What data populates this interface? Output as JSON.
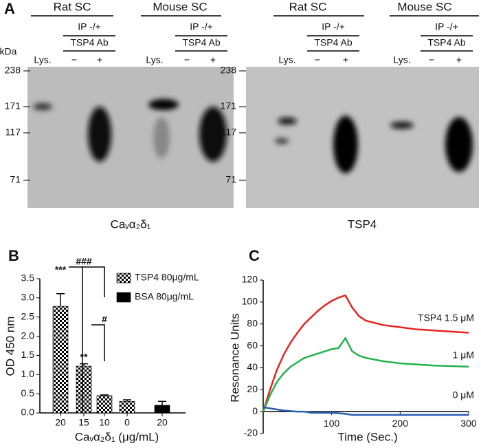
{
  "panel_a": {
    "label": "A",
    "unit": "kDa",
    "blots": [
      {
        "caption": "Caᵥα₂δ₁",
        "markers": [
          "238",
          "171",
          "117",
          "71"
        ],
        "groups": [
          {
            "name": "Rat SC",
            "ip": "IP -/+",
            "ab": "TSP4 Ab",
            "lanes": [
              "Lys.",
              "−",
              "+"
            ]
          },
          {
            "name": "Mouse SC",
            "ip": "IP -/+",
            "ab": "TSP4 Ab",
            "lanes": [
              "Lys.",
              "−",
              "+"
            ]
          }
        ]
      },
      {
        "caption": "TSP4",
        "markers": [
          "238",
          "171",
          "117",
          "71"
        ],
        "groups": [
          {
            "name": "Rat SC",
            "ip": "IP -/+",
            "ab": "TSP4 Ab",
            "lanes": [
              "Lys.",
              "−",
              "+"
            ]
          },
          {
            "name": "Mouse SC",
            "ip": "IP -/+",
            "ab": "TSP4 Ab",
            "lanes": [
              "Lys.",
              "−",
              "+"
            ]
          }
        ]
      }
    ]
  },
  "chart_data": [
    {
      "type": "bar",
      "panel": "B",
      "ylabel": "OD 450 nm",
      "xlabel": "Caᵥα₂δ₁ (μg/mL)",
      "categories": [
        "20",
        "15",
        "10",
        "0",
        "20"
      ],
      "series": [
        {
          "name": "TSP4 80μg/mL",
          "color": "checker",
          "values": [
            2.78,
            1.22,
            0.45,
            0.3,
            null
          ],
          "errors": [
            0.33,
            0.06,
            0.02,
            0.04,
            null
          ]
        },
        {
          "name": "BSA 80μg/mL",
          "color": "#000000",
          "values": [
            null,
            null,
            null,
            null,
            0.2
          ],
          "errors": [
            null,
            null,
            null,
            null,
            0.1
          ]
        }
      ],
      "annotations": [
        "***",
        "**",
        "###",
        "#"
      ],
      "ylim": [
        0,
        3.5
      ],
      "yticks": [
        {
          "value": 0,
          "label": "0.0"
        },
        {
          "value": 0.5,
          "label": "0.5"
        },
        {
          "value": 1,
          "label": "1.0"
        },
        {
          "value": 1.5,
          "label": "1.5"
        },
        {
          "value": 2,
          "label": "2.0"
        },
        {
          "value": 2.5,
          "label": "2.5"
        },
        {
          "value": 3,
          "label": "3.0"
        },
        {
          "value": 3.5,
          "label": "3.5"
        }
      ]
    },
    {
      "type": "line",
      "panel": "C",
      "ylabel": "Resonance Units",
      "xlabel": "Time (Sec.)",
      "x": [
        0,
        10,
        20,
        30,
        40,
        50,
        60,
        70,
        80,
        90,
        100,
        110,
        120,
        130,
        140,
        150,
        175,
        200,
        225,
        250,
        275,
        300
      ],
      "series": [
        {
          "name": "TSP4 1.5 μM",
          "color": "#e8231f",
          "values": [
            0,
            20,
            38,
            52,
            63,
            72,
            80,
            86,
            92,
            97,
            101,
            104,
            106,
            95,
            87,
            83,
            79,
            77,
            75,
            74,
            73,
            72
          ]
        },
        {
          "name": "1 μM",
          "color": "#1fb34a",
          "values": [
            0,
            15,
            27,
            35,
            41,
            45,
            49,
            51,
            53,
            55,
            57,
            58,
            67,
            55,
            51,
            49,
            46,
            44,
            43,
            42,
            41.5,
            41
          ]
        },
        {
          "name": "0 μM",
          "color": "#2a5db0",
          "values": [
            4,
            3,
            2,
            1,
            0.5,
            0,
            0,
            -1,
            -1,
            -1,
            -1,
            -1.5,
            -2,
            -3,
            -3,
            -3,
            -3,
            -3,
            -3,
            -3,
            -3,
            -3
          ]
        }
      ],
      "xlim": [
        0,
        300
      ],
      "xticks": [
        100,
        200,
        300
      ],
      "ylim": [
        -20,
        120
      ],
      "yticks": [
        -20,
        0,
        20,
        40,
        60,
        80,
        100,
        120
      ]
    }
  ]
}
